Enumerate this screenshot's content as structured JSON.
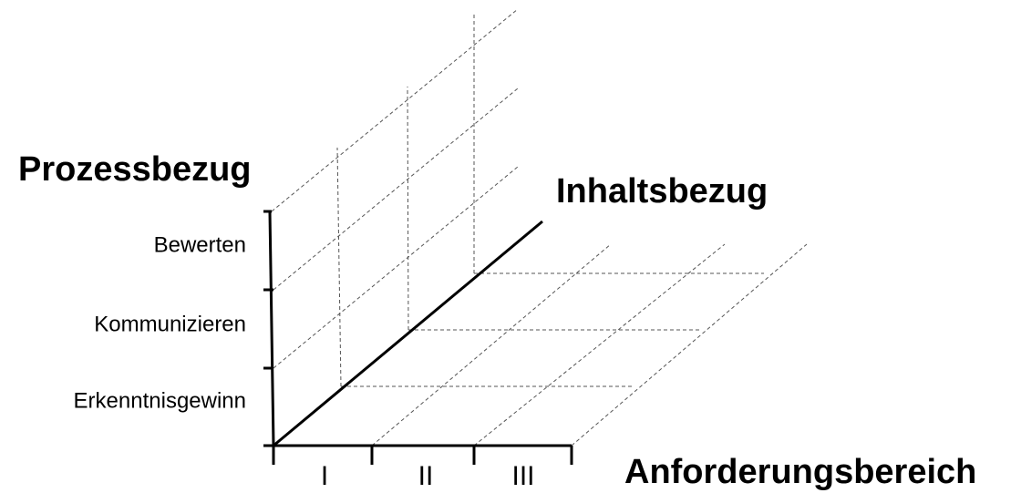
{
  "vertical_axis": {
    "title": "Prozessbezug",
    "labels": [
      "Erkenntnisgewinn",
      "Kommunizieren",
      "Bewerten"
    ]
  },
  "depth_axis": {
    "title": "Inhaltsbezug"
  },
  "horizontal_axis": {
    "title": "Anforderungsbereich",
    "labels": [
      "I",
      "II",
      "III"
    ]
  }
}
